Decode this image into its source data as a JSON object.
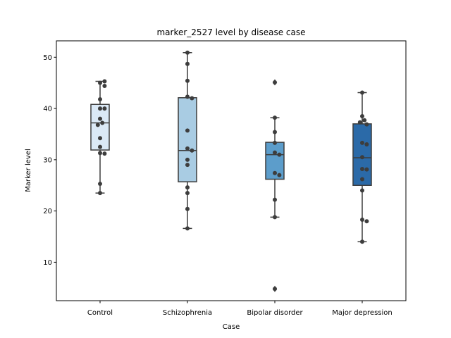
{
  "chart_data": {
    "type": "box",
    "title": "marker_2527 level by disease case",
    "xlabel": "Case",
    "ylabel": "Marker level",
    "ylim": [
      2.5,
      53.2
    ],
    "yticks": [
      10,
      20,
      30,
      40,
      50
    ],
    "categories": [
      "Control",
      "Schizophrenia",
      "Bipolar disorder",
      "Major depression"
    ],
    "box_colors": [
      "#dbe9f6",
      "#a9cce3",
      "#5c9dcb",
      "#2b6aa8"
    ],
    "line_color": "#3d3d3d",
    "point_color": "#3d3d3d",
    "grid": false,
    "legend": "none",
    "boxes": [
      {
        "category": "Control",
        "q1": 31.9,
        "median": 37.2,
        "q3": 40.8,
        "whisker_low": 23.5,
        "whisker_high": 45.3,
        "outliers": []
      },
      {
        "category": "Schizophrenia",
        "q1": 25.7,
        "median": 31.8,
        "q3": 42.1,
        "whisker_low": 16.6,
        "whisker_high": 50.9,
        "outliers": []
      },
      {
        "category": "Bipolar disorder",
        "q1": 26.2,
        "median": 31.0,
        "q3": 33.4,
        "whisker_low": 18.8,
        "whisker_high": 38.2,
        "outliers": [
          45.1,
          4.8
        ]
      },
      {
        "category": "Major depression",
        "q1": 25.0,
        "median": 30.4,
        "q3": 37.0,
        "whisker_low": 14.0,
        "whisker_high": 43.1,
        "outliers": []
      }
    ],
    "points": [
      [
        45.0,
        45.3,
        44.4,
        41.8,
        40.0,
        40.0,
        38.0,
        37.2,
        36.8,
        34.2,
        32.5,
        31.3,
        31.2,
        25.3,
        23.5
      ],
      [
        50.9,
        48.7,
        45.4,
        42.3,
        42.0,
        35.7,
        32.2,
        31.8,
        30.0,
        29.0,
        24.6,
        23.5,
        20.4,
        16.6
      ],
      [
        45.1,
        38.2,
        35.4,
        33.3,
        31.4,
        31.0,
        27.4,
        27.0,
        22.2,
        18.8,
        4.8
      ],
      [
        43.1,
        38.5,
        37.7,
        37.3,
        36.9,
        33.3,
        33.0,
        30.5,
        28.2,
        28.1,
        26.2,
        24.0,
        18.3,
        18.0,
        14.0
      ]
    ]
  }
}
